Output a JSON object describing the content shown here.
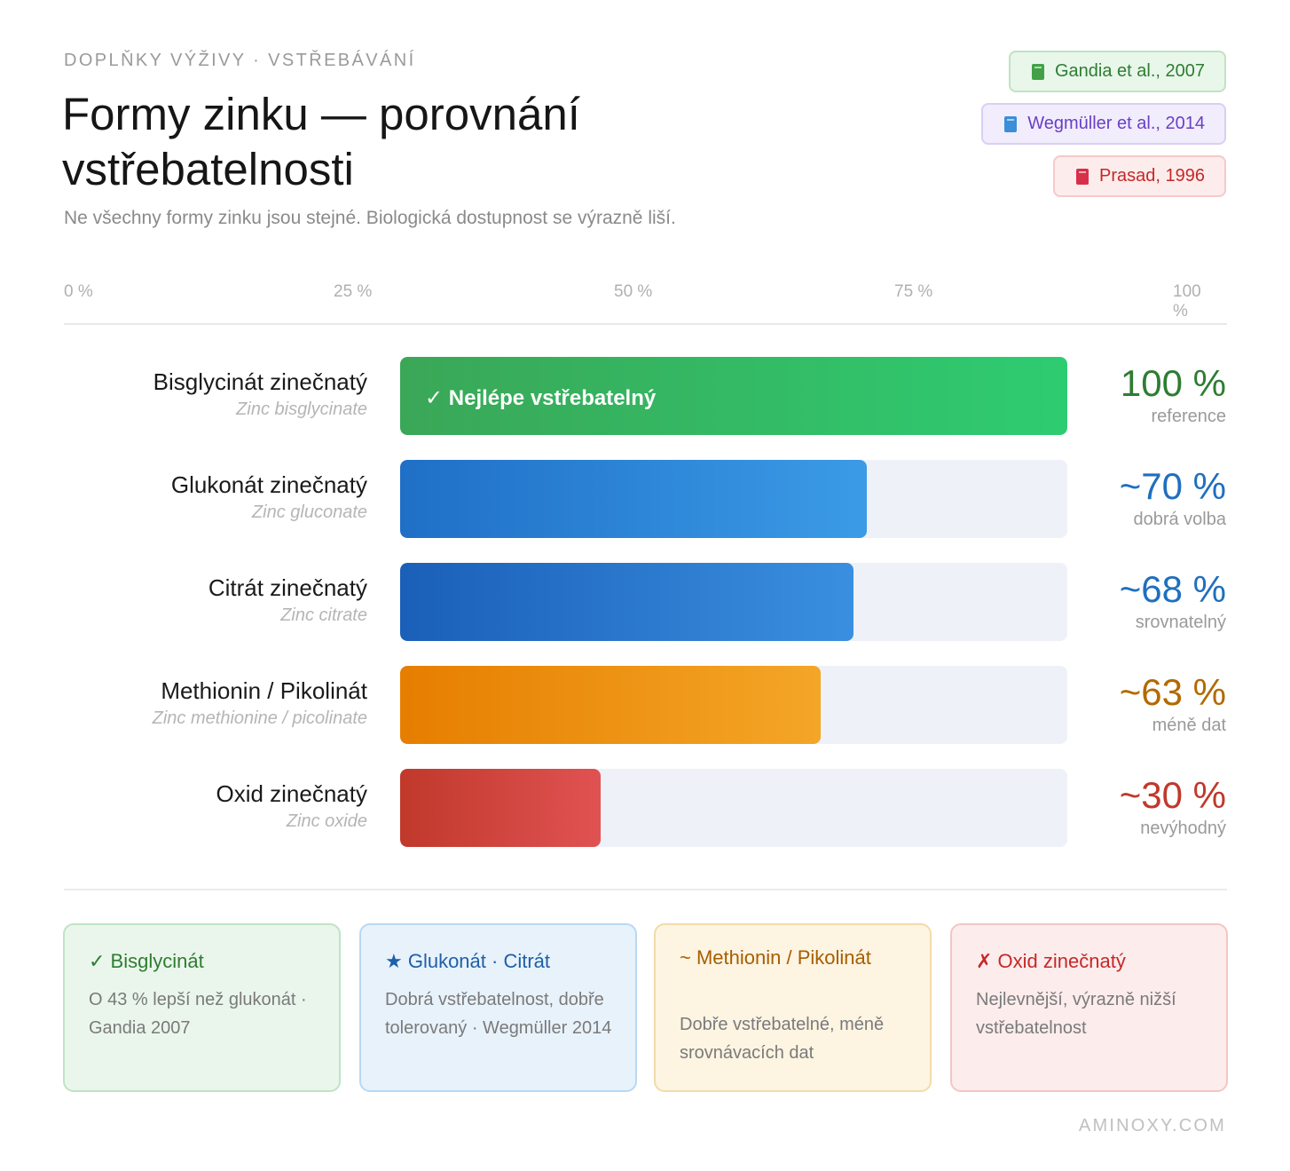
{
  "eyebrow": "DOPLŇKY VÝŽIVY · VSTŘEBÁVÁNÍ",
  "title": "Formy zinku — porovnání vstřebatelnosti",
  "subtitle": "Ne všechny formy zinku jsou stejné. Biologická dostupnost se výrazně liší.",
  "sources": [
    {
      "label": "Gandia et al., 2007",
      "text_color": "#2e7d32",
      "bg": "#e9f6ea",
      "border": "#bfe3c3",
      "icon": "green-book-icon",
      "icon_color": "#43a047"
    },
    {
      "label": "Wegmüller et al., 2014",
      "text_color": "#6a3fc7",
      "bg": "#f1edfc",
      "border": "#d9cff5",
      "icon": "blue-book-icon",
      "icon_color": "#3b8ed8"
    },
    {
      "label": "Prasad, 1996",
      "text_color": "#c62828",
      "bg": "#fdecec",
      "border": "#f5c9c9",
      "icon": "red-book-icon",
      "icon_color": "#d6304a"
    }
  ],
  "chart_data": {
    "type": "bar",
    "orientation": "horizontal",
    "axis_ticks": [
      "0 %",
      "25 %",
      "50 %",
      "75 %",
      "100 %"
    ],
    "xlim": [
      0,
      100
    ],
    "categories": [
      "Bisglycinát zinečnatý",
      "Glukonát zinečnatý",
      "Citrát zinečnatý",
      "Methionin / Pikolinát",
      "Oxid zinečnatý"
    ],
    "subcategories": [
      "Zinc bisglycinate",
      "Zinc gluconate",
      "Zinc citrate",
      "Zinc methionine / picolinate",
      "Zinc oxide"
    ],
    "values": [
      100,
      70,
      68,
      63,
      30
    ],
    "value_labels": [
      "100 %",
      "~70 %",
      "~68 %",
      "~63 %",
      "~30 %"
    ],
    "notes": [
      "reference",
      "dobrá volba",
      "srovnatelný",
      "méně dat",
      "nevýhodný"
    ],
    "bar_inner_labels": [
      "✓ Nejlépe vstřebatelný",
      "",
      "",
      "",
      ""
    ],
    "colors": [
      {
        "from": "#3aa757",
        "to": "#2ecc71",
        "text": "#2e7d32"
      },
      {
        "from": "#1f6fc7",
        "to": "#3b9be6",
        "text": "#1f6fbf"
      },
      {
        "from": "#1a5fb8",
        "to": "#3a8fe0",
        "text": "#1f6fbf"
      },
      {
        "from": "#e67e00",
        "to": "#f4a627",
        "text": "#b26a00"
      },
      {
        "from": "#c0392b",
        "to": "#e05252",
        "text": "#c0392b"
      }
    ],
    "track_color": "#eef1f8"
  },
  "cards": [
    {
      "title": "✓ Bisglycinát",
      "desc": "O 43 % lepší než glukonát · Gandia 2007",
      "title_color": "#2e7d32",
      "bg": "#eaf6eb",
      "border": "#bfe3c3"
    },
    {
      "title": "★ Glukonát · Citrát",
      "desc": "Dobrá vstřebatelnost, dobře tolerovaný · Wegmüller 2014",
      "title_color": "#1f5fa8",
      "bg": "#e8f2fb",
      "border": "#b9d8f2"
    },
    {
      "title": "~ Methionin / Pikolinát",
      "desc": "Dobře vstřebatelné, méně srovnávacích dat",
      "title_color": "#a65e00",
      "bg": "#fdf4e2",
      "border": "#f3dba9"
    },
    {
      "title": "✗ Oxid zinečnatý",
      "desc": "Nejlevnější, výrazně nižší vstřebatelnost",
      "title_color": "#c62828",
      "bg": "#fdecec",
      "border": "#f3c6c6"
    }
  ],
  "footer": "AMINOXY.COM"
}
